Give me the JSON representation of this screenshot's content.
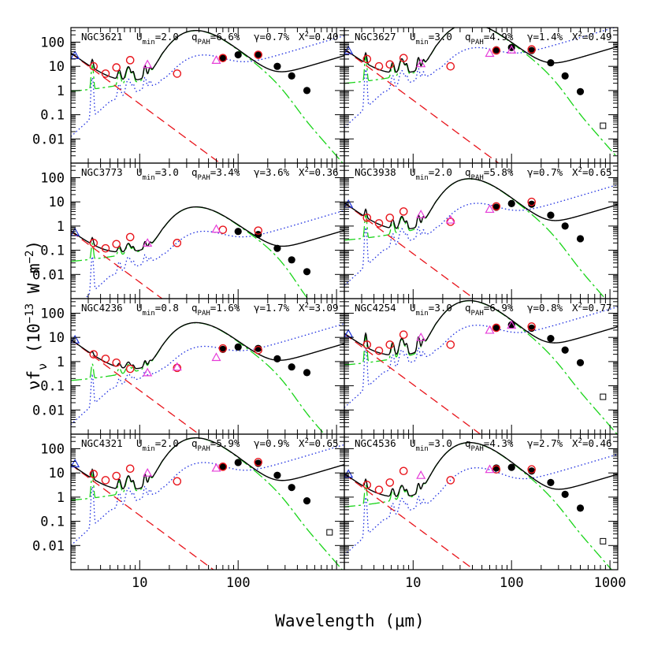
{
  "figure": {
    "xlabel": "Wavelength (μm)",
    "ylabel": "νf_ν (10^-13 W m^-2)",
    "colors": {
      "total": "#000000",
      "stellar": "#e8141b",
      "dust_umin": "#1a2be0",
      "dust_pdr": "#18d418",
      "obs_circle": "#e8141b",
      "obs_triangle_magenta": "#e63cd8",
      "obs_triangle_blue": "#2035d8",
      "obs_filled": "#000000",
      "obs_square": "#000000"
    }
  },
  "chart_data": [
    {
      "type": "line",
      "name": "NGC3621",
      "umin": "2.0",
      "qpah": "6.6%",
      "gamma": "0.7%",
      "chi2": "0.40",
      "xlim": [
        2,
        1200
      ],
      "ylim": [
        0.001,
        400
      ],
      "xscale": "log",
      "yscale": "log",
      "xticks": [
        "10",
        "100",
        "1000"
      ],
      "yticks": [
        "100",
        "10",
        "1",
        "0.1",
        "0.01"
      ],
      "peak": 30,
      "dust_level": 2.5,
      "pdr_frac": 0.9,
      "pah_scale": 1.1,
      "stellar_at_2": 35,
      "observations": {
        "circles": [
          [
            3.4,
            10
          ],
          [
            4.5,
            5
          ],
          [
            5.8,
            9
          ],
          [
            8,
            18
          ],
          [
            24,
            5
          ],
          [
            70,
            22
          ],
          [
            160,
            30
          ]
        ],
        "filled": [
          [
            70,
            22
          ],
          [
            100,
            30
          ],
          [
            160,
            29
          ],
          [
            250,
            10
          ],
          [
            350,
            4
          ],
          [
            500,
            1
          ]
        ],
        "triangles_magenta": [
          [
            12,
            12
          ],
          [
            60,
            18
          ]
        ],
        "triangles_blue": [
          [
            2.2,
            28
          ]
        ],
        "squares": []
      }
    },
    {
      "type": "line",
      "name": "NGC3627",
      "umin": "3.0",
      "qpah": "4.9%",
      "gamma": "1.4%",
      "chi2": "0.49",
      "xlim": [
        2,
        1200
      ],
      "ylim": [
        0.001,
        400
      ],
      "xscale": "log",
      "yscale": "log",
      "xticks": [
        "10",
        "100",
        "1000"
      ],
      "yticks": [
        "100",
        "10",
        "1",
        "0.1",
        "0.01"
      ],
      "peak": 58,
      "dust_level": 6,
      "pdr_frac": 0.8,
      "pah_scale": 1.0,
      "stellar_at_2": 50,
      "observations": {
        "circles": [
          [
            3.4,
            20
          ],
          [
            4.5,
            10
          ],
          [
            5.8,
            12
          ],
          [
            8,
            22
          ],
          [
            24,
            10
          ],
          [
            70,
            45
          ],
          [
            160,
            50
          ]
        ],
        "filled": [
          [
            70,
            48
          ],
          [
            100,
            60
          ],
          [
            160,
            45
          ],
          [
            250,
            14
          ],
          [
            350,
            4
          ],
          [
            500,
            0.9
          ]
        ],
        "triangles_magenta": [
          [
            12,
            13
          ],
          [
            60,
            35
          ],
          [
            100,
            48
          ]
        ],
        "triangles_blue": [
          [
            2.2,
            45
          ]
        ],
        "squares": [
          [
            850,
            0.035
          ]
        ]
      }
    },
    {
      "type": "line",
      "name": "NGC3773",
      "umin": "3.0",
      "qpah": "3.4%",
      "gamma": "3.6%",
      "chi2": "0.36",
      "xlim": [
        2,
        1200
      ],
      "ylim": [
        0.001,
        400
      ],
      "xscale": "log",
      "yscale": "log",
      "xticks": [
        "10",
        "100",
        "1000"
      ],
      "yticks": [
        "100",
        "10",
        "1",
        "0.1",
        "0.01"
      ],
      "peak": 0.6,
      "dust_level": 0.06,
      "pdr_frac": 1.4,
      "pah_scale": 0.7,
      "stellar_at_2": 0.6,
      "observations": {
        "circles": [
          [
            3.4,
            0.2
          ],
          [
            4.5,
            0.12
          ],
          [
            5.8,
            0.18
          ],
          [
            8,
            0.35
          ],
          [
            24,
            0.2
          ],
          [
            70,
            0.7
          ],
          [
            160,
            0.65
          ]
        ],
        "filled": [
          [
            100,
            0.6
          ],
          [
            160,
            0.45
          ],
          [
            250,
            0.12
          ],
          [
            350,
            0.04
          ],
          [
            500,
            0.013
          ]
        ],
        "triangles_magenta": [
          [
            12,
            0.2
          ],
          [
            60,
            0.75
          ]
        ],
        "triangles_blue": [
          [
            2.2,
            0.55
          ]
        ],
        "squares": []
      }
    },
    {
      "type": "line",
      "name": "NGC3938",
      "umin": "2.0",
      "qpah": "5.8%",
      "gamma": "0.7%",
      "chi2": "0.65",
      "xlim": [
        2,
        1200
      ],
      "ylim": [
        0.001,
        400
      ],
      "xscale": "log",
      "yscale": "log",
      "xticks": [
        "10",
        "100",
        "1000"
      ],
      "yticks": [
        "100",
        "10",
        "1",
        "0.1",
        "0.01"
      ],
      "peak": 9,
      "dust_level": 0.7,
      "pdr_frac": 0.9,
      "pah_scale": 1.0,
      "stellar_at_2": 9,
      "observations": {
        "circles": [
          [
            3.4,
            2.2
          ],
          [
            4.5,
            1.3
          ],
          [
            5.8,
            2.2
          ],
          [
            8,
            4
          ],
          [
            24,
            1.5
          ],
          [
            70,
            6.5
          ],
          [
            160,
            10
          ]
        ],
        "filled": [
          [
            70,
            6
          ],
          [
            100,
            8.5
          ],
          [
            160,
            8
          ],
          [
            250,
            2.8
          ],
          [
            350,
            1
          ],
          [
            500,
            0.3
          ]
        ],
        "triangles_magenta": [
          [
            12,
            3
          ],
          [
            60,
            5
          ],
          [
            24,
            1.8
          ]
        ],
        "triangles_blue": [
          [
            2.2,
            8
          ]
        ],
        "squares": []
      }
    },
    {
      "type": "line",
      "name": "NGC4236",
      "umin": "0.8",
      "qpah": "1.6%",
      "gamma": "1.7%",
      "chi2": "3.09",
      "xlim": [
        2,
        1200
      ],
      "ylim": [
        0.001,
        400
      ],
      "xscale": "log",
      "yscale": "log",
      "xticks": [
        "10",
        "100",
        "1000"
      ],
      "yticks": [
        "100",
        "10",
        "1",
        "0.1",
        "0.01"
      ],
      "peak": 4,
      "dust_level": 0.5,
      "pdr_frac": 0.8,
      "pah_scale": 0.35,
      "stellar_at_2": 8,
      "observations": {
        "circles": [
          [
            3.4,
            2
          ],
          [
            4.5,
            1.3
          ],
          [
            5.8,
            0.9
          ],
          [
            8,
            0.5
          ],
          [
            24,
            0.55
          ],
          [
            70,
            3.5
          ],
          [
            160,
            3
          ]
        ],
        "filled": [
          [
            70,
            3.2
          ],
          [
            100,
            4
          ],
          [
            160,
            3.5
          ],
          [
            250,
            1.3
          ],
          [
            350,
            0.6
          ],
          [
            500,
            0.35
          ]
        ],
        "triangles_magenta": [
          [
            12,
            0.35
          ],
          [
            24,
            0.6
          ],
          [
            60,
            1.5
          ]
        ],
        "triangles_blue": [
          [
            2.2,
            8
          ]
        ],
        "squares": []
      }
    },
    {
      "type": "line",
      "name": "NGC4254",
      "umin": "3.0",
      "qpah": "6.9%",
      "gamma": "0.8%",
      "chi2": "0.77",
      "xlim": [
        2,
        1200
      ],
      "ylim": [
        0.001,
        400
      ],
      "xscale": "log",
      "yscale": "log",
      "xticks": [
        "10",
        "100",
        "1000"
      ],
      "yticks": [
        "100",
        "10",
        "1",
        "0.1",
        "0.01"
      ],
      "peak": 33,
      "dust_level": 2.5,
      "pdr_frac": 0.7,
      "pah_scale": 1.15,
      "stellar_at_2": 14,
      "observations": {
        "circles": [
          [
            3.4,
            5
          ],
          [
            4.5,
            2.8
          ],
          [
            5.8,
            5
          ],
          [
            8,
            13
          ],
          [
            24,
            5
          ],
          [
            70,
            25
          ],
          [
            160,
            28
          ]
        ],
        "filled": [
          [
            70,
            24
          ],
          [
            100,
            33
          ],
          [
            160,
            24
          ],
          [
            250,
            9
          ],
          [
            350,
            3
          ],
          [
            500,
            0.9
          ]
        ],
        "triangles_magenta": [
          [
            12,
            10
          ],
          [
            60,
            20
          ],
          [
            100,
            32
          ]
        ],
        "triangles_blue": [
          [
            2.2,
            14
          ]
        ],
        "squares": [
          [
            850,
            0.035
          ]
        ]
      }
    },
    {
      "type": "line",
      "name": "NGC4321",
      "umin": "2.0",
      "qpah": "5.9%",
      "gamma": "0.9%",
      "chi2": "0.65",
      "xlim": [
        2,
        1200
      ],
      "ylim": [
        0.001,
        400
      ],
      "xscale": "log",
      "yscale": "log",
      "xticks": [
        "10",
        "100",
        "1000"
      ],
      "yticks": [
        "100",
        "10",
        "1",
        "0.1",
        "0.01"
      ],
      "peak": 28,
      "dust_level": 2,
      "pdr_frac": 0.9,
      "pah_scale": 1.1,
      "stellar_at_2": 22,
      "observations": {
        "circles": [
          [
            3.4,
            9
          ],
          [
            4.5,
            5
          ],
          [
            5.8,
            7.5
          ],
          [
            8,
            15
          ],
          [
            24,
            4.5
          ],
          [
            70,
            18
          ],
          [
            160,
            28
          ]
        ],
        "filled": [
          [
            70,
            18
          ],
          [
            100,
            27
          ],
          [
            160,
            25
          ],
          [
            250,
            8
          ],
          [
            350,
            2.5
          ],
          [
            500,
            0.7
          ]
        ],
        "triangles_magenta": [
          [
            12,
            10
          ],
          [
            60,
            16
          ]
        ],
        "triangles_blue": [
          [
            2.2,
            24
          ]
        ],
        "squares": [
          [
            850,
            0.035
          ]
        ]
      }
    },
    {
      "type": "line",
      "name": "NGC4536",
      "umin": "3.0",
      "qpah": "4.3%",
      "gamma": "2.7%",
      "chi2": "0.46",
      "xlim": [
        2,
        1200
      ],
      "ylim": [
        0.001,
        400
      ],
      "xscale": "log",
      "yscale": "log",
      "xticks": [
        "10",
        "100",
        "1000"
      ],
      "yticks": [
        "100",
        "10",
        "1",
        "0.1",
        "0.01"
      ],
      "peak": 18,
      "dust_level": 0.8,
      "pdr_frac": 1.2,
      "pah_scale": 1.0,
      "stellar_at_2": 9,
      "observations": {
        "circles": [
          [
            3.4,
            3.2
          ],
          [
            4.5,
            2
          ],
          [
            5.8,
            4
          ],
          [
            8,
            12
          ],
          [
            24,
            5
          ],
          [
            70,
            14
          ],
          [
            160,
            14
          ]
        ],
        "filled": [
          [
            70,
            16
          ],
          [
            100,
            17
          ],
          [
            160,
            12
          ],
          [
            250,
            4
          ],
          [
            350,
            1.3
          ],
          [
            500,
            0.35
          ]
        ],
        "triangles_magenta": [
          [
            12,
            8
          ],
          [
            60,
            14
          ]
        ],
        "triangles_blue": [
          [
            2.2,
            9
          ]
        ],
        "squares": [
          [
            850,
            0.015
          ]
        ]
      }
    }
  ]
}
